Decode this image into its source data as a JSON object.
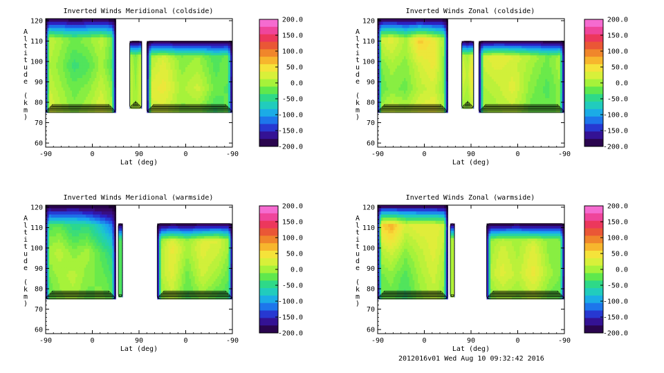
{
  "chart_data": [
    {
      "type": "heatmap",
      "title": "Inverted Winds Meridional (coldside)",
      "xlabel": "Lat (deg)",
      "ylabel": "Altitude (km)",
      "x_tick_labels": [
        "-90",
        "0",
        "90",
        "0",
        "-90"
      ],
      "y_ticks": [
        60,
        70,
        80,
        90,
        100,
        110,
        120
      ],
      "ylim": [
        58,
        121
      ],
      "colorbar": {
        "ticks": [
          "200.0",
          "150.0",
          "100.0",
          "50.0",
          "0.0",
          "-50.0",
          "-100.0",
          "-150.0",
          "-200.0"
        ],
        "range": [
          -200,
          200
        ]
      },
      "orbit_segments": [
        {
          "x": [
            -90,
            45
          ],
          "y": [
            75,
            121
          ],
          "values": [
            [
              30,
              10,
              -10,
              5,
              20,
              -20
            ],
            [
              20,
              0,
              -20,
              -10,
              10,
              -30
            ],
            [
              10,
              -10,
              -40,
              -30,
              0,
              -40
            ],
            [
              20,
              0,
              -20,
              -10,
              15,
              -20
            ],
            [
              40,
              10,
              -10,
              5,
              30,
              -10
            ]
          ]
        },
        {
          "x": [
            72,
            95
          ],
          "y": [
            77,
            110
          ],
          "values": [
            [
              0,
              -20,
              10
            ],
            [
              20,
              -10,
              30
            ],
            [
              10,
              0,
              20
            ]
          ]
        },
        {
          "x": [
            105,
            270
          ],
          "y": [
            75,
            110
          ],
          "values": [
            [
              -10,
              10,
              -20,
              -10,
              -40,
              -20
            ],
            [
              0,
              30,
              -10,
              0,
              -30,
              -10
            ],
            [
              30,
              40,
              0,
              20,
              -20,
              -30
            ],
            [
              10,
              20,
              -10,
              -10,
              -40,
              -10
            ]
          ]
        }
      ],
      "level_step": 10
    },
    {
      "type": "heatmap",
      "title": "Inverted Winds Zonal (coldside)",
      "xlabel": "Lat (deg)",
      "ylabel": "Altitude (km)",
      "x_tick_labels": [
        "-90",
        "0",
        "90",
        "0",
        "-90"
      ],
      "y_ticks": [
        60,
        70,
        80,
        90,
        100,
        110,
        120
      ],
      "ylim": [
        58,
        121
      ],
      "colorbar": {
        "ticks": [
          "200.0",
          "150.0",
          "100.0",
          "50.0",
          "0.0",
          "-50.0",
          "-100.0",
          "-150.0",
          "-200.0"
        ],
        "range": [
          -200,
          200
        ]
      },
      "orbit_segments": [
        {
          "x": [
            -90,
            45
          ],
          "y": [
            75,
            121
          ],
          "values": [
            [
              40,
              60,
              20,
              50,
              10,
              -10
            ],
            [
              10,
              30,
              0,
              60,
              40,
              -20
            ],
            [
              -20,
              0,
              -10,
              20,
              40,
              -30
            ],
            [
              -30,
              -10,
              -20,
              10,
              20,
              -20
            ],
            [
              0,
              20,
              10,
              30,
              40,
              -10
            ]
          ]
        },
        {
          "x": [
            72,
            95
          ],
          "y": [
            77,
            110
          ],
          "values": [
            [
              10,
              -10,
              20
            ],
            [
              30,
              10,
              60
            ],
            [
              0,
              -10,
              20
            ]
          ]
        },
        {
          "x": [
            105,
            270
          ],
          "y": [
            75,
            110
          ],
          "values": [
            [
              20,
              50,
              40,
              20,
              -10,
              0
            ],
            [
              10,
              30,
              20,
              0,
              -20,
              10
            ],
            [
              0,
              10,
              30,
              -10,
              -30,
              0
            ],
            [
              -10,
              0,
              10,
              -20,
              -20,
              -10
            ]
          ]
        }
      ],
      "level_step": 10
    },
    {
      "type": "heatmap",
      "title": "Inverted Winds Meridional (warmside)",
      "xlabel": "Lat (deg)",
      "ylabel": "Altitude (km)",
      "x_tick_labels": [
        "-90",
        "0",
        "90",
        "0",
        "-90"
      ],
      "y_ticks": [
        60,
        70,
        80,
        90,
        100,
        110,
        120
      ],
      "ylim": [
        58,
        121
      ],
      "colorbar": {
        "ticks": [
          "200.0",
          "150.0",
          "100.0",
          "50.0",
          "0.0",
          "-50.0",
          "-100.0",
          "-150.0",
          "-200.0"
        ],
        "range": [
          -200,
          200
        ]
      },
      "orbit_segments": [
        {
          "x": [
            -90,
            45
          ],
          "y": [
            75,
            121
          ],
          "values": [
            [
              -40,
              -70,
              -30,
              -80,
              -120,
              -150
            ],
            [
              -30,
              -20,
              -50,
              -40,
              -80,
              -120
            ],
            [
              0,
              10,
              -10,
              0,
              -30,
              -60
            ],
            [
              -20,
              0,
              10,
              -10,
              -20,
              -40
            ],
            [
              -30,
              -10,
              0,
              -20,
              -10,
              -30
            ]
          ]
        },
        {
          "x": [
            50,
            58
          ],
          "y": [
            76,
            112
          ],
          "values": [
            [
              -40,
              -30
            ],
            [
              -20,
              -40
            ]
          ]
        },
        {
          "x": [
            125,
            270
          ],
          "y": [
            75,
            112
          ],
          "values": [
            [
              -30,
              0,
              -20,
              10,
              40,
              -20
            ],
            [
              -10,
              40,
              0,
              30,
              20,
              -10
            ],
            [
              0,
              30,
              -20,
              20,
              0,
              -30
            ],
            [
              -20,
              10,
              -30,
              -10,
              -30,
              -40
            ]
          ]
        }
      ],
      "level_step": 10
    },
    {
      "type": "heatmap",
      "title": "Inverted Winds Zonal (warmside)",
      "xlabel": "Lat (deg)",
      "ylabel": "Altitude (km)",
      "x_tick_labels": [
        "-90",
        "0",
        "90",
        "0",
        "-90"
      ],
      "y_ticks": [
        60,
        70,
        80,
        90,
        100,
        110,
        120
      ],
      "ylim": [
        58,
        121
      ],
      "colorbar": {
        "ticks": [
          "200.0",
          "150.0",
          "100.0",
          "50.0",
          "0.0",
          "-50.0",
          "-100.0",
          "-150.0",
          "-200.0"
        ],
        "range": [
          -200,
          200
        ]
      },
      "orbit_segments": [
        {
          "x": [
            -90,
            45
          ],
          "y": [
            75,
            121
          ],
          "values": [
            [
              90,
              110,
              70,
              60,
              50,
              30
            ],
            [
              40,
              70,
              20,
              30,
              30,
              20
            ],
            [
              0,
              20,
              -10,
              10,
              30,
              0
            ],
            [
              -20,
              -10,
              -30,
              0,
              20,
              -10
            ],
            [
              -30,
              -20,
              -40,
              -10,
              10,
              -20
            ]
          ]
        },
        {
          "x": [
            50,
            58
          ],
          "y": [
            76,
            112
          ],
          "values": [
            [
              0,
              10
            ],
            [
              -10,
              20
            ]
          ]
        },
        {
          "x": [
            120,
            270
          ],
          "y": [
            75,
            112
          ],
          "values": [
            [
              -20,
              -10,
              0,
              -20,
              -10,
              -20
            ],
            [
              -10,
              20,
              0,
              30,
              -10,
              -10
            ],
            [
              0,
              30,
              10,
              40,
              0,
              -20
            ],
            [
              -20,
              0,
              -10,
              10,
              -20,
              -30
            ]
          ]
        }
      ],
      "level_step": 10
    }
  ],
  "footer": "2012016v01 Wed Aug 10 09:32:42 2016"
}
